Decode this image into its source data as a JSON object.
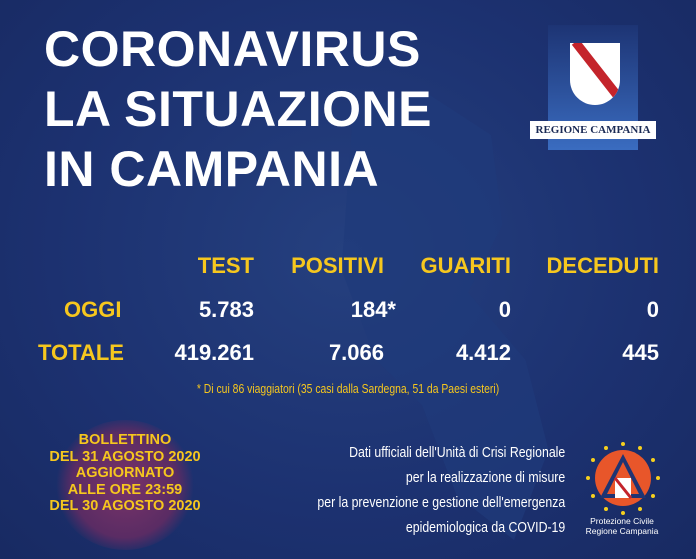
{
  "title": [
    "CORONAVIRUS",
    "LA SITUAZIONE",
    "IN CAMPANIA"
  ],
  "logo": {
    "label": "REGIONE CAMPANIA",
    "icon": "campania-shield-icon"
  },
  "table": {
    "headers": [
      "TEST",
      "POSITIVI",
      "GUARITI",
      "DECEDUTI"
    ],
    "rows": [
      {
        "label": "OGGI",
        "values": [
          "5.783",
          "184*",
          "0",
          "0"
        ]
      },
      {
        "label": "TOTALE",
        "values": [
          "419.261",
          "7.066",
          "4.412",
          "445"
        ]
      }
    ]
  },
  "footnote": "* Di cui 86 viaggiatori (35 casi dalla Sardegna, 51 da Paesi esteri)",
  "bulletin": [
    "BOLLETTINO",
    "DEL 31 AGOSTO 2020",
    "AGGIORNATO",
    "ALLE ORE 23:59",
    "DEL 30 AGOSTO 2020"
  ],
  "info": [
    "Dati ufficiali dell'Unità di Crisi Regionale",
    "per la realizzazione di misure",
    "per la prevenzione e gestione dell'emergenza",
    "epidemiologica da COVID-19"
  ],
  "protezione": {
    "label": [
      "Protezione Civile",
      "Regione Campania"
    ],
    "icon": "protezione-civile-icon"
  },
  "colors": {
    "background": "#1e3473",
    "accent": "#f6c71e",
    "text": "#ffffff"
  }
}
